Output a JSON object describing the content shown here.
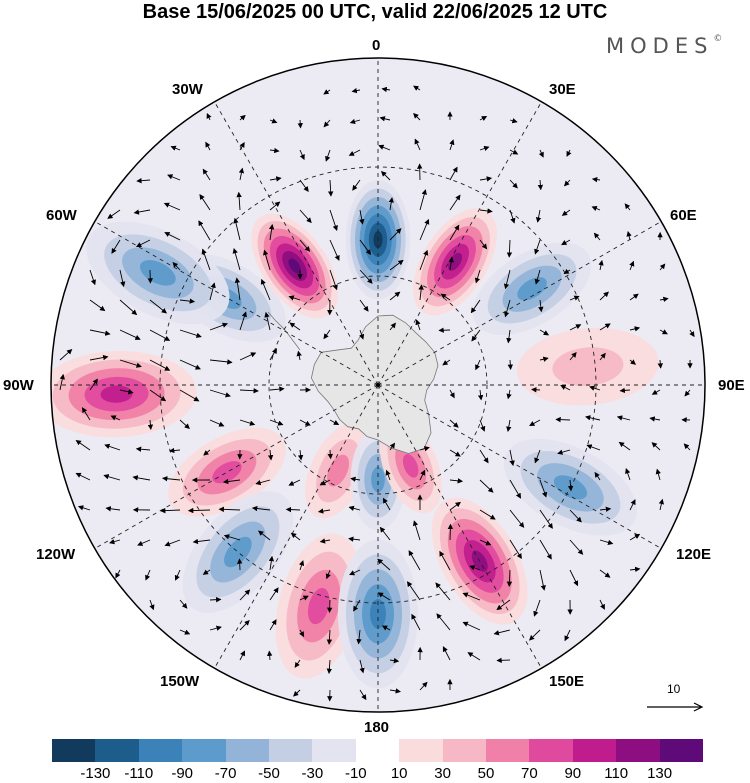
{
  "title": "Base 15/06/2025 00 UTC, valid 22/06/2025 12 UTC",
  "brand": {
    "name": "MODES",
    "mark": "©"
  },
  "longitude_labels": {
    "n0": "0",
    "n30e": "30E",
    "n60e": "60E",
    "n90e": "90E",
    "n120e": "120E",
    "n150e": "150E",
    "n180": "180",
    "n150w": "150W",
    "n120w": "120W",
    "n90w": "90W",
    "n60w": "60W",
    "n30w": "30W"
  },
  "reference_vector": {
    "label": "10",
    "icon": "arrow-right-icon"
  },
  "colorbar": {
    "colors": [
      "#113a5c",
      "#1d5d8c",
      "#3b82b8",
      "#5c9bcb",
      "#93b4d8",
      "#c4cfe4",
      "#e4e4f0",
      "#ffffff",
      "#fbdcdc",
      "#f6b8c4",
      "#f080a8",
      "#e04a9e",
      "#c01c8e",
      "#8c0e80",
      "#5e0a78"
    ],
    "tick_labels": [
      "-130",
      "-110",
      "-90",
      "-70",
      "-50",
      "-30",
      "-10",
      "10",
      "30",
      "50",
      "70",
      "90",
      "110",
      "130"
    ]
  },
  "anomaly_centers": [
    {
      "lon": 325,
      "colat": 40,
      "value": 120
    },
    {
      "lon": 0,
      "colat": 40,
      "value": -115
    },
    {
      "lon": 32,
      "colat": 40,
      "value": 110
    },
    {
      "lon": 300,
      "colat": 48,
      "value": -70
    },
    {
      "lon": 297,
      "colat": 68,
      "value": -60
    },
    {
      "lon": 268,
      "colat": 72,
      "value": 80
    },
    {
      "lon": 240,
      "colat": 48,
      "value": 70
    },
    {
      "lon": 220,
      "colat": 60,
      "value": -70
    },
    {
      "lon": 195,
      "colat": 63,
      "value": 70
    },
    {
      "lon": 180,
      "colat": 63,
      "value": -80
    },
    {
      "lon": 150,
      "colat": 56,
      "value": 100
    },
    {
      "lon": 118,
      "colat": 60,
      "value": -55
    },
    {
      "lon": 205,
      "colat": 26,
      "value": 40
    },
    {
      "lon": 180,
      "colat": 26,
      "value": -55
    },
    {
      "lon": 158,
      "colat": 24,
      "value": 55
    },
    {
      "lon": 58,
      "colat": 50,
      "value": -55
    },
    {
      "lon": 85,
      "colat": 58,
      "value": 30
    }
  ]
}
